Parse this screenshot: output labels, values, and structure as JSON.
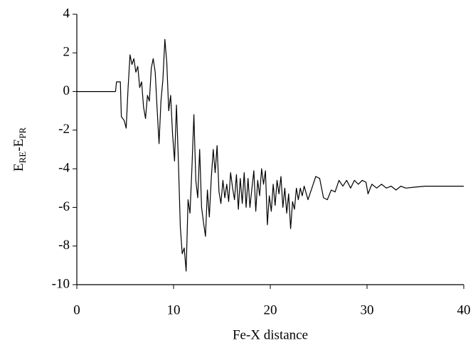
{
  "chart_data": {
    "type": "line",
    "xlabel": "Fe-X distance",
    "ylabel": [
      "E",
      "RE",
      "-E",
      "PR"
    ],
    "xlim": [
      0,
      40
    ],
    "xticks": [
      0,
      10,
      20,
      30,
      40
    ],
    "ylim": [
      -10,
      4
    ],
    "yticks": [
      -10,
      -8,
      -6,
      -4,
      -2,
      0,
      2,
      4
    ],
    "grid": false,
    "series": [
      {
        "color": "#000000",
        "x": [
          0,
          4,
          4.1,
          4.5,
          4.6,
          4.9,
          5.1,
          5.3,
          5.5,
          5.7,
          5.9,
          6.1,
          6.3,
          6.5,
          6.7,
          6.9,
          7.1,
          7.3,
          7.5,
          7.7,
          7.9,
          8.1,
          8.3,
          8.5,
          8.7,
          8.9,
          9.1,
          9.3,
          9.5,
          9.7,
          9.9,
          10.1,
          10.3,
          10.5,
          10.7,
          10.9,
          11.1,
          11.3,
          11.5,
          11.7,
          11.9,
          12.1,
          12.3,
          12.5,
          12.7,
          12.9,
          13.1,
          13.3,
          13.5,
          13.7,
          13.9,
          14.1,
          14.3,
          14.5,
          14.7,
          14.9,
          15.1,
          15.3,
          15.5,
          15.7,
          15.9,
          16.1,
          16.3,
          16.5,
          16.7,
          16.9,
          17.1,
          17.3,
          17.5,
          17.7,
          17.9,
          18.1,
          18.3,
          18.5,
          18.7,
          18.9,
          19.1,
          19.3,
          19.5,
          19.7,
          19.9,
          20.1,
          20.3,
          20.5,
          20.7,
          20.9,
          21.1,
          21.3,
          21.5,
          21.7,
          21.9,
          22.1,
          22.3,
          22.5,
          22.7,
          22.9,
          23.1,
          23.3,
          23.5,
          23.9,
          24.3,
          24.7,
          25.1,
          25.5,
          25.9,
          26.3,
          26.7,
          27.1,
          27.5,
          27.9,
          28.3,
          28.7,
          29.1,
          29.5,
          29.9,
          30.1,
          30.5,
          31,
          31.5,
          32,
          32.5,
          33,
          33.5,
          34,
          35,
          36,
          38,
          40
        ],
        "values": [
          0,
          0,
          0.5,
          0.5,
          -1.3,
          -1.5,
          -1.9,
          0.2,
          1.9,
          1.4,
          1.7,
          1.0,
          1.3,
          0.2,
          0.5,
          -0.8,
          -1.4,
          -0.2,
          -0.5,
          1.2,
          1.7,
          1.0,
          -0.9,
          -2.7,
          -0.5,
          0.6,
          2.7,
          1.5,
          -1.0,
          -0.2,
          -2.2,
          -3.6,
          -0.7,
          -3.6,
          -7.0,
          -8.4,
          -8.1,
          -9.3,
          -5.6,
          -6.3,
          -4.0,
          -1.2,
          -4.6,
          -5.5,
          -3.0,
          -6.0,
          -6.8,
          -7.5,
          -5.1,
          -6.5,
          -4.5,
          -3.0,
          -4.2,
          -2.8,
          -5.2,
          -5.8,
          -4.6,
          -5.5,
          -4.8,
          -5.7,
          -4.2,
          -5.0,
          -5.6,
          -4.3,
          -6.1,
          -4.5,
          -5.8,
          -4.2,
          -6.0,
          -4.5,
          -6.0,
          -5.0,
          -4.1,
          -6.2,
          -4.6,
          -5.4,
          -4.0,
          -4.8,
          -4.1,
          -6.9,
          -5.4,
          -6.2,
          -4.8,
          -5.9,
          -4.6,
          -5.3,
          -4.4,
          -6.0,
          -5.0,
          -6.3,
          -5.3,
          -7.1,
          -5.7,
          -6.1,
          -5.0,
          -5.6,
          -5.0,
          -5.4,
          -4.9,
          -5.6,
          -5.0,
          -4.4,
          -4.5,
          -5.5,
          -5.6,
          -5.1,
          -5.2,
          -4.6,
          -4.9,
          -4.6,
          -5.0,
          -4.6,
          -4.8,
          -4.6,
          -4.7,
          -5.3,
          -4.8,
          -5.0,
          -4.8,
          -5.0,
          -4.9,
          -5.1,
          -4.9,
          -5.0,
          -4.95,
          -4.9,
          -4.9,
          -4.9
        ]
      }
    ]
  }
}
